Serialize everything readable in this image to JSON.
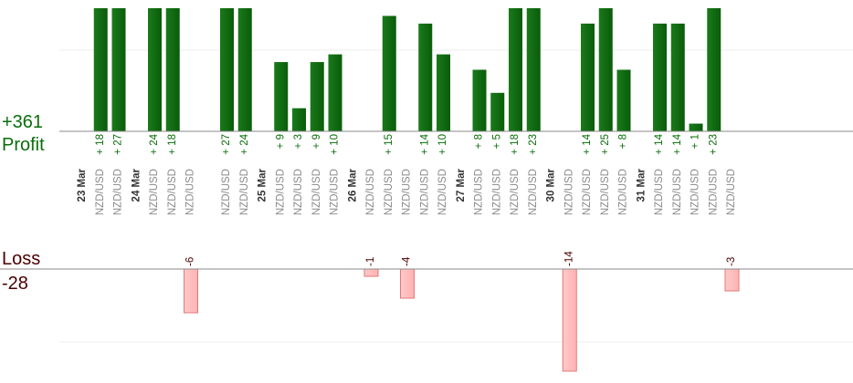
{
  "summary": {
    "profit_total": "+361",
    "profit_label": "Profit",
    "loss_label": "Loss",
    "loss_total": "-28"
  },
  "colors": {
    "profit_bar": "#0a5c0a",
    "profit_bar_light": "#1a7a1a",
    "profit_text": "#0a6e0a",
    "loss_fill": "#ffb3b3",
    "loss_stroke": "#e07a7a",
    "loss_text": "#4a0000",
    "axis": "#888888",
    "grid": "#ececec"
  },
  "chart_data": {
    "type": "bar",
    "layout": "profit above axis, loss below axis, one slot per trade",
    "groups": [
      {
        "date": "23 Mar",
        "trades": [
          {
            "pair": "NZD/USD",
            "value": 18
          },
          {
            "pair": "NZD/USD",
            "value": 27
          }
        ]
      },
      {
        "date": "24 Mar",
        "trades": [
          {
            "pair": "NZD/USD",
            "value": 24
          },
          {
            "pair": "NZD/USD",
            "value": 18
          },
          {
            "pair": "NZD/USD",
            "value": -6
          }
        ]
      },
      {
        "date": "",
        "trades": [
          {
            "pair": "NZD/USD",
            "value": 27
          },
          {
            "pair": "NZD/USD",
            "value": 24
          }
        ]
      },
      {
        "date": "25 Mar",
        "trades": [
          {
            "pair": "NZD/USD",
            "value": 9
          },
          {
            "pair": "NZD/USD",
            "value": 3
          },
          {
            "pair": "NZD/USD",
            "value": 9
          },
          {
            "pair": "NZD/USD",
            "value": 10
          }
        ]
      },
      {
        "date": "26 Mar",
        "trades": [
          {
            "pair": "NZD/USD",
            "value": -1
          },
          {
            "pair": "NZD/USD",
            "value": 15
          },
          {
            "pair": "NZD/USD",
            "value": -4
          },
          {
            "pair": "NZD/USD",
            "value": 14
          },
          {
            "pair": "NZD/USD",
            "value": 10
          }
        ]
      },
      {
        "date": "27 Mar",
        "trades": [
          {
            "pair": "NZD/USD",
            "value": 8
          },
          {
            "pair": "NZD/USD",
            "value": 5
          },
          {
            "pair": "NZD/USD",
            "value": 18
          },
          {
            "pair": "NZD/USD",
            "value": 23
          }
        ]
      },
      {
        "date": "30 Mar",
        "trades": [
          {
            "pair": "NZD/USD",
            "value": -14
          },
          {
            "pair": "NZD/USD",
            "value": 14
          },
          {
            "pair": "NZD/USD",
            "value": 25
          },
          {
            "pair": "NZD/USD",
            "value": 8
          }
        ]
      },
      {
        "date": "31 Mar",
        "trades": [
          {
            "pair": "NZD/USD",
            "value": 14
          },
          {
            "pair": "NZD/USD",
            "value": 14
          },
          {
            "pair": "NZD/USD",
            "value": 1
          },
          {
            "pair": "NZD/USD",
            "value": 23
          },
          {
            "pair": "NZD/USD",
            "value": -3
          }
        ]
      }
    ],
    "profit_ylim": [
      0,
      16
    ],
    "loss_ylim": [
      0,
      14
    ],
    "grid": true,
    "legend": "none"
  }
}
